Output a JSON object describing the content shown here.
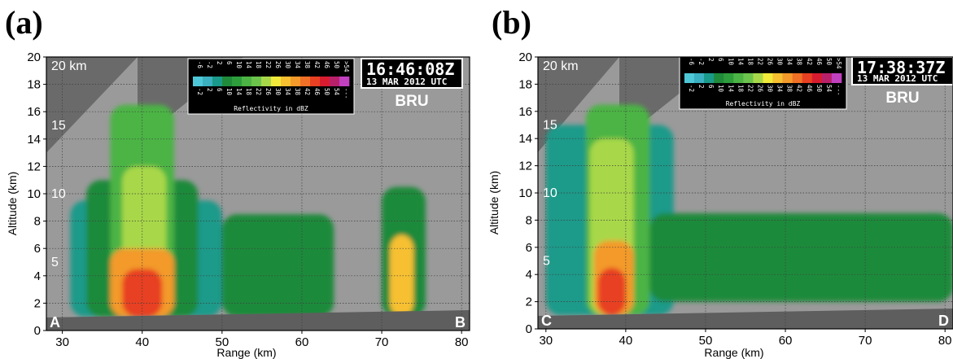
{
  "panels": [
    {
      "label": "(a)",
      "time": "16:46:08Z",
      "date": "13 MAR 2012 UTC",
      "station": "BRU",
      "start_marker": "A",
      "end_marker": "B",
      "range_label": "20 km",
      "ring_labels": [
        "15",
        "10",
        "5"
      ],
      "xlabel": "Range (km)",
      "ylabel": "Altitude (km)"
    },
    {
      "label": "(b)",
      "time": "17:38:37Z",
      "date": "13 MAR 2012 UTC",
      "station": "BRU",
      "start_marker": "C",
      "end_marker": "D",
      "range_label": "20 km",
      "ring_labels": [
        "15",
        "10",
        "5"
      ],
      "xlabel": "Range (km)",
      "ylabel": "Altitude (km)"
    }
  ],
  "colorbar": {
    "title": "Reflectivity in dBZ",
    "top_labels": [
      "-6",
      "-2",
      "2",
      "6",
      "10",
      "14",
      "18",
      "22",
      "26",
      "30",
      "34",
      "38",
      "42",
      "46",
      "50",
      ">54"
    ],
    "bottom_labels": [
      "-2",
      "2",
      "6",
      "10",
      "14",
      "18",
      "22",
      "26",
      "30",
      "34",
      "38",
      "42",
      "46",
      "50",
      "54",
      "---"
    ],
    "colors": [
      "#4ec8d8",
      "#3bb0c0",
      "#1a9a8a",
      "#1f8a3a",
      "#2e9e3c",
      "#4cb444",
      "#6cc44c",
      "#a8d84a",
      "#f2ea3a",
      "#f6c030",
      "#f39a2a",
      "#ef7026",
      "#e84022",
      "#d81c30",
      "#b8206a",
      "#c040c0"
    ]
  },
  "chart_data": [
    {
      "type": "heatmap",
      "title": "",
      "xlabel": "Range (km)",
      "ylabel": "Altitude (km)",
      "xlim": [
        28,
        81
      ],
      "ylim": [
        0,
        20
      ],
      "xticks": [
        30,
        40,
        50,
        60,
        70,
        80
      ],
      "yticks": [
        0,
        2,
        4,
        6,
        8,
        10,
        12,
        14,
        16,
        18,
        20
      ],
      "grid": true,
      "cells": [
        {
          "x": [
            31,
            50
          ],
          "y": [
            1,
            9.5
          ],
          "dbz": 2
        },
        {
          "x": [
            33,
            47
          ],
          "y": [
            1,
            11
          ],
          "dbz": 6
        },
        {
          "x": [
            36,
            44
          ],
          "y": [
            1,
            16.5
          ],
          "dbz": 14
        },
        {
          "x": [
            37.5,
            43
          ],
          "y": [
            1,
            12
          ],
          "dbz": 24
        },
        {
          "x": [
            36,
            44
          ],
          "y": [
            1,
            6
          ],
          "dbz": 34
        },
        {
          "x": [
            37.5,
            42.5
          ],
          "y": [
            1,
            4.5
          ],
          "dbz": 44
        },
        {
          "x": [
            50,
            64
          ],
          "y": [
            1,
            8.5
          ],
          "dbz": 8
        },
        {
          "x": [
            70,
            75.5
          ],
          "y": [
            1,
            10.5
          ],
          "dbz": 8
        },
        {
          "x": [
            71,
            74
          ],
          "y": [
            1,
            7
          ],
          "dbz": 30
        }
      ]
    },
    {
      "type": "heatmap",
      "title": "",
      "xlabel": "Range (km)",
      "ylabel": "Altitude (km)",
      "xlim": [
        29,
        81
      ],
      "ylim": [
        0,
        20
      ],
      "xticks": [
        30,
        40,
        50,
        60,
        70,
        80
      ],
      "yticks": [
        0,
        2,
        4,
        6,
        8,
        10,
        12,
        14,
        16,
        18,
        20
      ],
      "grid": true,
      "cells": [
        {
          "x": [
            30,
            46
          ],
          "y": [
            1,
            15
          ],
          "dbz": 4
        },
        {
          "x": [
            35,
            43
          ],
          "y": [
            1,
            16.5
          ],
          "dbz": 14
        },
        {
          "x": [
            35.5,
            41
          ],
          "y": [
            1,
            14
          ],
          "dbz": 24
        },
        {
          "x": [
            36,
            41
          ],
          "y": [
            1,
            6.5
          ],
          "dbz": 34
        },
        {
          "x": [
            36.5,
            40
          ],
          "y": [
            1,
            4.5
          ],
          "dbz": 44
        },
        {
          "x": [
            43,
            81
          ],
          "y": [
            2,
            8.5
          ],
          "dbz": 8
        }
      ]
    }
  ]
}
